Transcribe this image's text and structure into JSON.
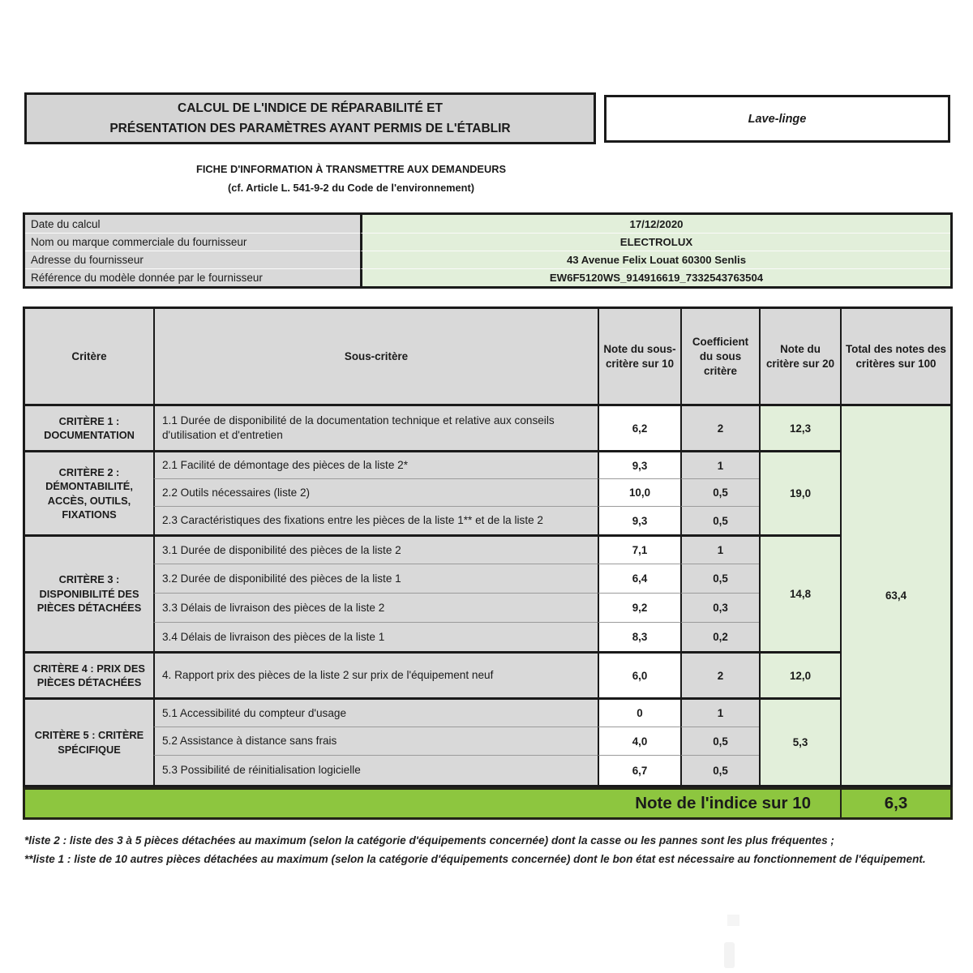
{
  "header": {
    "title_line1": "CALCUL DE L'INDICE DE RÉPARABILITÉ ET",
    "title_line2": "PRÉSENTATION DES PARAMÈTRES AYANT PERMIS DE L'ÉTABLIR",
    "product_category": "Lave-linge",
    "subtitle_line1": "FICHE D'INFORMATION À TRANSMETTRE AUX DEMANDEURS",
    "subtitle_line2": "(cf. Article L. 541-9-2 du Code de l'environnement)"
  },
  "info": {
    "rows": [
      {
        "label": "Date du calcul",
        "value": "17/12/2020"
      },
      {
        "label": "Nom ou marque commerciale du fournisseur",
        "value": "ELECTROLUX"
      },
      {
        "label": "Adresse du fournisseur",
        "value": "43  Avenue  Felix Louat  60300 Senlis"
      },
      {
        "label": "Référence du modèle donnée par le fournisseur",
        "value": "EW6F5120WS_914916619_7332543763504"
      }
    ]
  },
  "table": {
    "headers": [
      "Critère",
      "Sous-critère",
      "Note du sous-critère sur 10",
      "Coefficient du sous critère",
      "Note du critère sur 20",
      "Total des notes des critères sur 100"
    ],
    "criteria": [
      {
        "label": "CRITÈRE 1 : DOCUMENTATION",
        "note20": "12,3",
        "subs": [
          {
            "text": "1.1 Durée de disponibilité de la documentation technique et relative aux conseils d'utilisation et d'entretien",
            "note10": "6,2",
            "coef": "2"
          }
        ]
      },
      {
        "label": "CRITÈRE 2 : DÉMONTABILITÉ, ACCÈS, OUTILS, FIXATIONS",
        "note20": "19,0",
        "subs": [
          {
            "text": "2.1 Facilité de démontage des pièces de la liste 2*",
            "note10": "9,3",
            "coef": "1"
          },
          {
            "text": "2.2 Outils nécessaires (liste 2)",
            "note10": "10,0",
            "coef": "0,5"
          },
          {
            "text": "2.3 Caractéristiques des fixations entre les pièces de la liste 1** et de la liste 2",
            "note10": "9,3",
            "coef": "0,5"
          }
        ]
      },
      {
        "label": "CRITÈRE 3 : DISPONIBILITÉ DES PIÈCES DÉTACHÉES",
        "note20": "14,8",
        "subs": [
          {
            "text": "3.1 Durée de disponibilité des pièces de la liste 2",
            "note10": "7,1",
            "coef": "1"
          },
          {
            "text": "3.2 Durée de disponibilité des pièces de la liste 1",
            "note10": "6,4",
            "coef": "0,5"
          },
          {
            "text": "3.3 Délais de livraison des pièces de la liste 2",
            "note10": "9,2",
            "coef": "0,3"
          },
          {
            "text": "3.4 Délais de livraison des pièces de la liste 1",
            "note10": "8,3",
            "coef": "0,2"
          }
        ]
      },
      {
        "label": "CRITÈRE 4 : PRIX DES PIÈCES DÉTACHÉES",
        "note20": "12,0",
        "subs": [
          {
            "text": "4. Rapport prix des pièces de la liste 2 sur prix de l'équipement neuf",
            "note10": "6,0",
            "coef": "2"
          }
        ]
      },
      {
        "label": "CRITÈRE 5 : CRITÈRE SPÉCIFIQUE",
        "note20": "5,3",
        "subs": [
          {
            "text": "5.1 Accessibilité du compteur d'usage",
            "note10": "0",
            "coef": "1"
          },
          {
            "text": "5.2 Assistance à distance sans frais",
            "note10": "4,0",
            "coef": "0,5"
          },
          {
            "text": "5.3 Possibilité de réinitialisation logicielle",
            "note10": "6,7",
            "coef": "0,5"
          }
        ]
      }
    ],
    "total100": "63,4",
    "final_label": "Note de l'indice sur 10",
    "final_value": "6,3"
  },
  "footnotes": {
    "line1": "*liste 2 : liste des 3 à 5 pièces détachées au maximum (selon la catégorie d'équipements concernée) dont la casse ou les pannes sont les plus fréquentes ;",
    "line2": "**liste 1 : liste de 10 autres pièces détachées au maximum (selon la catégorie d'équipements concernée) dont le bon état est nécessaire au fonctionnement de l'équipement."
  },
  "colors": {
    "cell_gray": "#d9d9d9",
    "cell_pale_green": "#e2efda",
    "score_green": "#8dc63f"
  }
}
